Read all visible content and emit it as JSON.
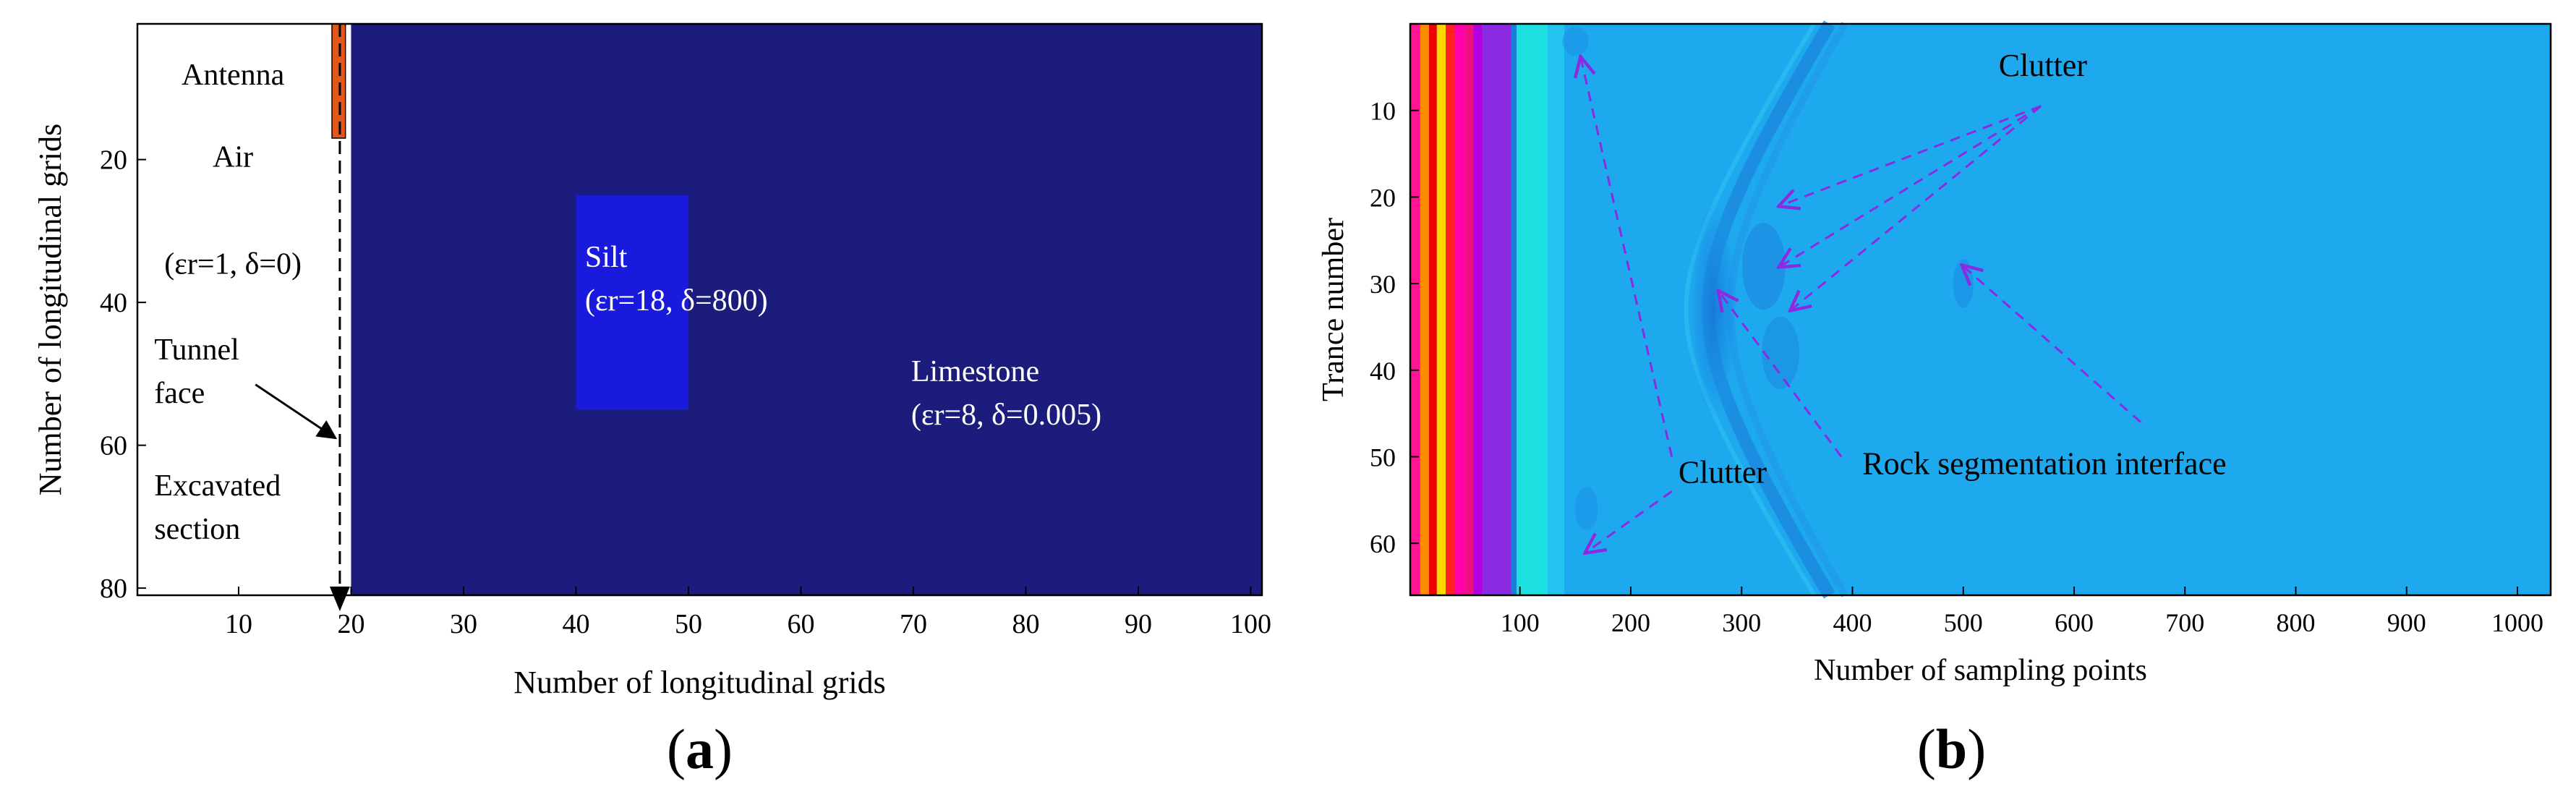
{
  "figure": {
    "panels": [
      {
        "label_open": "(",
        "label_letter": "a",
        "label_close": ")"
      },
      {
        "label_open": "(",
        "label_letter": "b",
        "label_close": ")"
      }
    ]
  },
  "colors": {
    "limestone": "#1c1c7c",
    "silt": "#1a1adc",
    "antenna": "#e2581c",
    "background_b": "#1ea9ee",
    "axis": "#000000",
    "annotation_a": "#000000",
    "annotation_b": "#8a2be2"
  },
  "chart_data": [
    {
      "type": "heatmap",
      "title": "",
      "xlabel": "Number of longitudinal grids",
      "ylabel": "Number of longitudinal grids",
      "xlim": [
        1,
        101
      ],
      "ylim": [
        1,
        81
      ],
      "y_reversed": true,
      "xticks": [
        10,
        20,
        30,
        40,
        50,
        60,
        70,
        80,
        90,
        100
      ],
      "yticks": [
        20,
        40,
        60,
        80
      ],
      "regions": [
        {
          "name": "Limestone",
          "x": [
            20,
            101
          ],
          "y": [
            1,
            81
          ],
          "color": "#1c1c7c"
        },
        {
          "name": "Silt",
          "x": [
            40,
            50
          ],
          "y": [
            25,
            55
          ],
          "color": "#1a1adc"
        },
        {
          "name": "Antenna",
          "x": [
            18.3,
            19.5
          ],
          "y": [
            1,
            17
          ],
          "color": "#e2581c"
        }
      ],
      "annotations": [
        {
          "id": "antenna",
          "lines": [
            "Antenna"
          ],
          "x": 9.5,
          "y": 9.5,
          "color": "#000000"
        },
        {
          "id": "air",
          "lines": [
            "Air"
          ],
          "x": 9.5,
          "y": 21,
          "color": "#000000"
        },
        {
          "id": "air_params",
          "lines": [
            "(εr=1, δ=0)"
          ],
          "x": 9.5,
          "y": 36,
          "color": "#000000"
        },
        {
          "id": "tunnel_face",
          "lines": [
            "Tunnel",
            "face"
          ],
          "x": 2.5,
          "y": 48,
          "color": "#000000"
        },
        {
          "id": "excavated",
          "lines": [
            "Excavated",
            "section"
          ],
          "x": 2.5,
          "y": 67,
          "color": "#000000"
        },
        {
          "id": "silt",
          "lines": [
            "Silt",
            "(εr=18, δ=800)"
          ],
          "x": 40.8,
          "y": 35,
          "color": "#ffffff"
        },
        {
          "id": "limestone",
          "lines": [
            "Limestone",
            "(εr=8, δ=0.005)"
          ],
          "x": 69.8,
          "y": 51,
          "color": "#ffffff"
        }
      ],
      "tunnel_face_x": 19
    },
    {
      "type": "heatmap",
      "title": "",
      "xlabel": "Number of sampling points",
      "ylabel": "Trance number",
      "xlim": [
        1,
        1030
      ],
      "ylim": [
        0,
        66
      ],
      "y_reversed": true,
      "xticks": [
        100,
        200,
        300,
        400,
        500,
        600,
        700,
        800,
        900,
        1000
      ],
      "yticks": [
        10,
        20,
        30,
        40,
        50,
        60
      ],
      "direct_wave_bands": [
        {
          "x": [
            1,
            10
          ],
          "color": "#ff1493"
        },
        {
          "x": [
            10,
            18
          ],
          "color": "#ff8c00"
        },
        {
          "x": [
            18,
            25
          ],
          "color": "#ee0000"
        },
        {
          "x": [
            25,
            33
          ],
          "color": "#ffd700"
        },
        {
          "x": [
            33,
            41
          ],
          "color": "#ff2020"
        },
        {
          "x": [
            41,
            50
          ],
          "color": "#ff00aa"
        },
        {
          "x": [
            50,
            58
          ],
          "color": "#ee1080"
        },
        {
          "x": [
            58,
            66
          ],
          "color": "#b000e0"
        },
        {
          "x": [
            66,
            92
          ],
          "color": "#8a2be2"
        },
        {
          "x": [
            92,
            97
          ],
          "color": "#1a7fd6"
        },
        {
          "x": [
            97,
            125
          ],
          "color": "#1fe0e0"
        },
        {
          "x": [
            125,
            140
          ],
          "color": "#23c5f0"
        }
      ],
      "annotations": [
        {
          "id": "clutter_top",
          "lines": [
            "Clutter"
          ],
          "x": 532,
          "y": 6,
          "color": "#000000"
        },
        {
          "id": "clutter_bottom",
          "lines": [
            "Clutter"
          ],
          "x": 243,
          "y": 53,
          "color": "#000000"
        },
        {
          "id": "rock_interface",
          "lines": [
            "Rock segmentation interface"
          ],
          "x": 409,
          "y": 52,
          "color": "#000000"
        }
      ]
    }
  ]
}
